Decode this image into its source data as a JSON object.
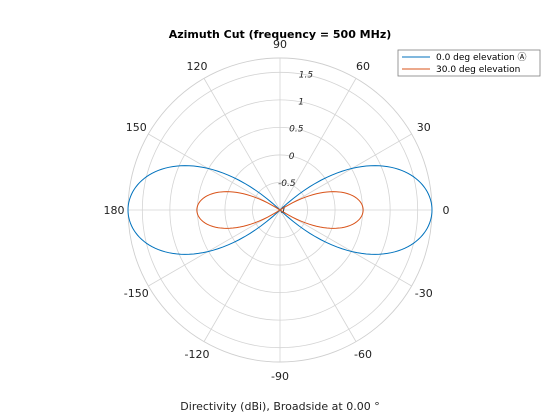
{
  "chart_data": {
    "type": "polar-line",
    "title": "Azimuth Cut (frequency = 500 MHz)",
    "xlabel": "Directivity (dBi), Broadside at 0.00 °",
    "angle_ticks": [
      "90",
      "60",
      "30",
      "0",
      "-30",
      "-60",
      "-90",
      "-120",
      "-150",
      "180",
      "150",
      "120"
    ],
    "radial_ticks": [
      "-1",
      "-0.5",
      "0",
      "0.5",
      "1",
      "1.5"
    ],
    "rlim": [
      -1,
      1.76
    ],
    "legend": {
      "placement": "top-right",
      "entries": [
        "0.0 deg elevation Ⓐ",
        "30.0 deg elevation"
      ]
    },
    "series": [
      {
        "name": "0.0 deg elevation Ⓐ",
        "color": "#0072bd",
        "peak_dbi": 1.76,
        "theta_deg": [
          0,
          15,
          30,
          45,
          60,
          75,
          90,
          105,
          120,
          135,
          150,
          165,
          180,
          195,
          210,
          225,
          240,
          255,
          270,
          285,
          300,
          315,
          330,
          345
        ]
      },
      {
        "name": "30.0 deg elevation",
        "color": "#d95319",
        "peak_dbi": 0.51,
        "theta_deg": [
          0,
          15,
          30,
          45,
          60,
          75,
          90,
          105,
          120,
          135,
          150,
          165,
          180,
          195,
          210,
          225,
          240,
          255,
          270,
          285,
          300,
          315,
          330,
          345
        ]
      }
    ]
  }
}
